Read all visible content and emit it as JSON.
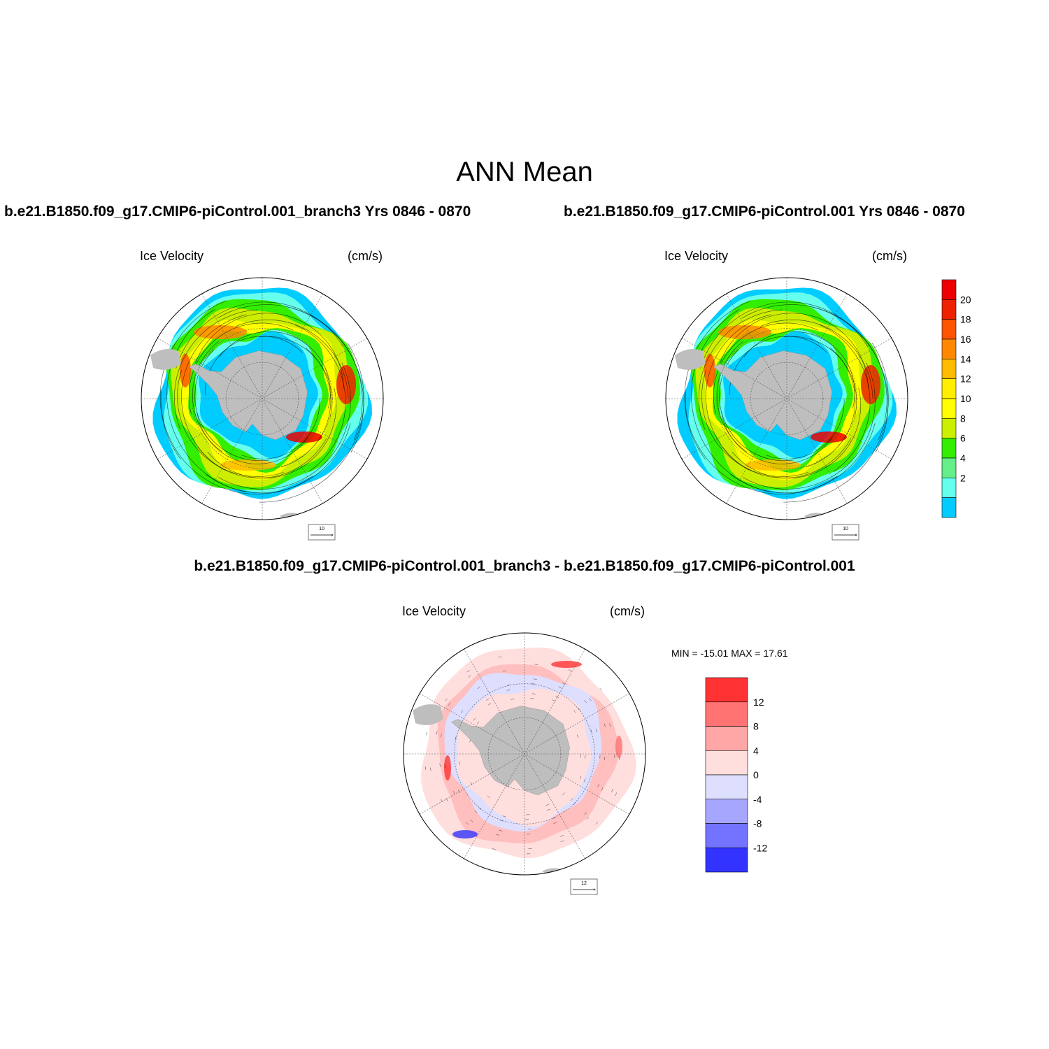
{
  "main_title": "ANN Mean",
  "panels": [
    {
      "id": "branch3",
      "title": "b.e21.B1850.f09_g17.CMIP6-piControl.001_branch3  Yrs 0846 - 0870",
      "left_label": "Ice Velocity",
      "right_label": "(cm/s)",
      "ref_vector": "10"
    },
    {
      "id": "control",
      "title": "b.e21.B1850.f09_g17.CMIP6-piControl.001  Yrs 0846 - 0870",
      "left_label": "Ice Velocity",
      "right_label": "(cm/s)",
      "ref_vector": "10"
    },
    {
      "id": "difference",
      "title": "b.e21.B1850.f09_g17.CMIP6-piControl.001_branch3 - b.e21.B1850.f09_g17.CMIP6-piControl.001",
      "left_label": "Ice Velocity",
      "right_label": "(cm/s)",
      "ref_vector": "12",
      "min_max": "MIN = -15.01 MAX =  17.61"
    }
  ],
  "colorbar_main": {
    "labels": [
      "20",
      "18",
      "16",
      "14",
      "12",
      "10",
      "8",
      "6",
      "4",
      "2"
    ],
    "colors": [
      "#ee0000",
      "#ee2200",
      "#ff5500",
      "#ff8800",
      "#ffbb00",
      "#ffee00",
      "#ffff00",
      "#ccee00",
      "#33ee00",
      "#66ee88",
      "#66ffee",
      "#00ccff"
    ]
  },
  "colorbar_diff": {
    "labels": [
      "12",
      "8",
      "4",
      "0",
      "-4",
      "-8",
      "-12"
    ],
    "colors": [
      "#ff3333",
      "#ff7373",
      "#ffa6a6",
      "#ffdede",
      "#dedeff",
      "#a6a6ff",
      "#7373ff",
      "#3333ff"
    ]
  },
  "colors": {
    "land": "#bebebe",
    "frame": "#000000",
    "grid": "#555555"
  }
}
